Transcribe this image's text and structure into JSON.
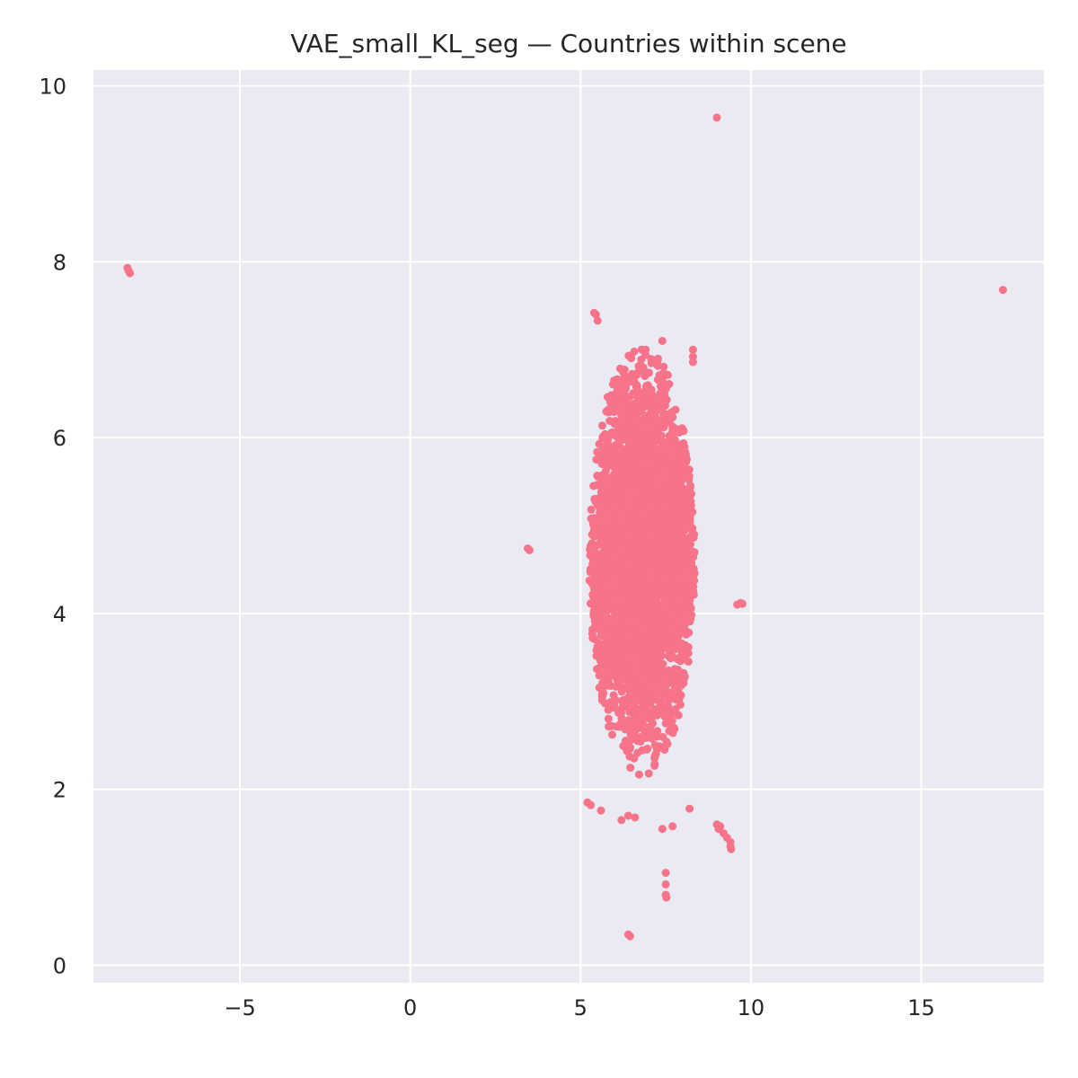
{
  "chart_data": {
    "type": "scatter",
    "title": "VAE_small_KL_seg — Countries within scene",
    "xlabel": "",
    "ylabel": "",
    "xlim": [
      -9.3,
      18.6
    ],
    "ylim": [
      -0.2,
      10.18
    ],
    "x_ticks": [
      -5,
      0,
      5,
      10,
      15
    ],
    "x_tick_labels": [
      "−5",
      "0",
      "5",
      "10",
      "15"
    ],
    "y_ticks": [
      0,
      2,
      4,
      6,
      8,
      10
    ],
    "y_tick_labels": [
      "0",
      "2",
      "4",
      "6",
      "8",
      "10"
    ],
    "grid": true,
    "legend": "none",
    "colors": {
      "background": "#eaeaf2",
      "grid": "#ffffff",
      "marker": "#f7738a"
    },
    "series": [
      {
        "points": [
          [
            -8.3,
            7.93
          ],
          [
            -8.27,
            7.9
          ],
          [
            -8.23,
            7.87
          ],
          [
            9.0,
            9.64
          ],
          [
            17.4,
            7.68
          ],
          [
            5.4,
            7.42
          ],
          [
            5.45,
            7.4
          ],
          [
            5.5,
            7.33
          ],
          [
            7.4,
            7.1
          ],
          [
            8.3,
            7.0
          ],
          [
            8.3,
            6.92
          ],
          [
            8.3,
            6.86
          ],
          [
            3.45,
            4.74
          ],
          [
            3.5,
            4.72
          ],
          [
            9.7,
            4.12
          ],
          [
            9.6,
            4.1
          ],
          [
            9.75,
            4.11
          ],
          [
            9.0,
            1.6
          ],
          [
            9.1,
            1.58
          ],
          [
            9.2,
            1.5
          ],
          [
            9.3,
            1.45
          ],
          [
            9.4,
            1.4
          ],
          [
            9.4,
            1.35
          ],
          [
            9.42,
            1.32
          ],
          [
            9.05,
            1.55
          ],
          [
            7.5,
            1.05
          ],
          [
            7.5,
            0.92
          ],
          [
            7.5,
            0.8
          ],
          [
            7.52,
            0.77
          ],
          [
            6.4,
            0.35
          ],
          [
            6.45,
            0.33
          ],
          [
            6.2,
            1.65
          ],
          [
            6.4,
            1.7
          ],
          [
            6.6,
            1.68
          ],
          [
            7.4,
            1.55
          ],
          [
            7.7,
            1.58
          ],
          [
            8.2,
            1.78
          ],
          [
            5.2,
            1.85
          ],
          [
            5.3,
            1.82
          ],
          [
            5.6,
            1.76
          ]
        ]
      }
    ],
    "cluster": {
      "center": [
        6.8,
        4.6
      ],
      "spread": [
        1.05,
        1.15
      ],
      "count": 4500
    }
  }
}
